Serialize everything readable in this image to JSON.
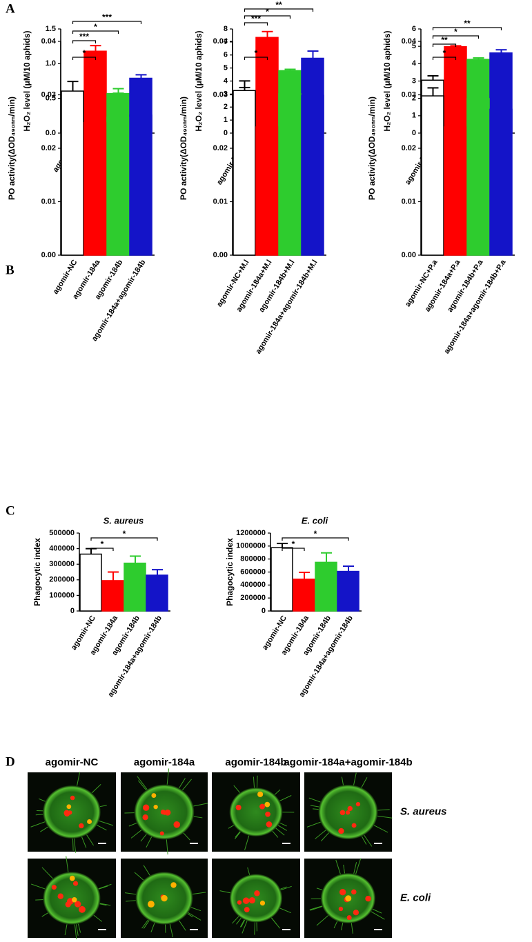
{
  "panels": [
    "A",
    "B",
    "C",
    "D"
  ],
  "chart_data": [
    {
      "type": "bar",
      "y_label": "H₂O₂ level (μM/10 aphids)",
      "categories": [
        "agomir-NC",
        "agomir-184a",
        "agomir-184b",
        "agomir-184a+agomir-184b"
      ],
      "colors": [
        "#ffffff",
        "#ff0000",
        "#2ecc2e",
        "#1414c8"
      ],
      "values": [
        0.27,
        1.18,
        0.57,
        0.79
      ],
      "errors": [
        0.08,
        0.08,
        0.07,
        0.05
      ],
      "annotations": [
        null,
        "***",
        "*",
        "***"
      ],
      "ylim": [
        0,
        1.5
      ],
      "yticks": [
        {
          "value": 0,
          "label": "0.0"
        },
        0.5,
        {
          "value": 1,
          "label": "1.0"
        },
        1.5
      ]
    },
    {
      "type": "bar",
      "y_label": "H₂O₂ level (μM/10 aphids)",
      "categories": [
        "agomir-NC+M.l",
        "agomir-184a+M.l",
        "agomir-184b+M.l",
        "agomir-184a+agomir-184b+M.l"
      ],
      "colors": [
        "#ffffff",
        "#ff0000",
        "#2ecc2e",
        "#1414c8"
      ],
      "values": [
        3.0,
        7.35,
        4.8,
        5.75
      ],
      "errors": [
        0.5,
        0.45,
        0.1,
        0.55
      ],
      "annotations": [
        null,
        "***",
        "*",
        "**"
      ],
      "ylim": [
        0,
        8
      ],
      "yticks": [
        0,
        1,
        2,
        3,
        4,
        5,
        6,
        7,
        8
      ]
    },
    {
      "type": "bar",
      "y_label": "H₂O₂ level (μM/10 aphids)",
      "categories": [
        "agomir-NC+P.a",
        "agomir-184a+P.a",
        "agomir-184b+P.a",
        "agomir-184a+agomir-184b+P.a"
      ],
      "colors": [
        "#ffffff",
        "#ff0000",
        "#2ecc2e",
        "#1414c8"
      ],
      "values": [
        3.05,
        4.98,
        4.25,
        4.62
      ],
      "errors": [
        0.25,
        0.05,
        0.08,
        0.18
      ],
      "annotations": [
        null,
        "**",
        "*",
        "**"
      ],
      "ylim": [
        0,
        6
      ],
      "yticks": [
        0,
        1,
        2,
        3,
        4,
        5,
        6
      ]
    },
    {
      "type": "bar",
      "y_label": "PO activity(ΔOD₄₉₀ₙₘ/min)",
      "categories": [
        "agomir-NC",
        "agomir-184a",
        "agomir-184b",
        "agomir-184a+agomir-184b"
      ],
      "colors": [
        "#ffffff",
        "#ff0000",
        "#2ecc2e",
        "#1414c8"
      ],
      "values": [
        0.0307,
        0.0248,
        0.0258,
        0.0262
      ],
      "errors": [
        0.0018,
        0.0012,
        0.0045,
        0.0048
      ],
      "annotations": [
        null,
        "*",
        null,
        null
      ],
      "ylim": [
        0,
        0.04
      ],
      "yticks": [
        {
          "value": 0,
          "label": "0.00"
        },
        0.01,
        0.02,
        0.03,
        0.04
      ]
    },
    {
      "type": "bar",
      "y_label": "PO activity(ΔOD₄₉₀ₙₘ/min)",
      "categories": [
        "agomir-NC+M.l",
        "agomir-184a+M.l",
        "agomir-184b+M.l",
        "agomir-184a+agomir-184b+M.l"
      ],
      "colors": [
        "#ffffff",
        "#ff0000",
        "#2ecc2e",
        "#1414c8"
      ],
      "values": [
        0.0308,
        0.024,
        0.0302,
        0.0299
      ],
      "errors": [
        0.0018,
        0.0027,
        0.003,
        0.0033
      ],
      "annotations": [
        null,
        "*",
        null,
        null
      ],
      "ylim": [
        0,
        0.04
      ],
      "yticks": [
        {
          "value": 0,
          "label": "0.00"
        },
        0.01,
        0.02,
        0.03,
        0.04
      ]
    },
    {
      "type": "bar",
      "y_label": "PO activity(ΔOD₄₉₀ₙₘ/min)",
      "categories": [
        "agomir-NC+P.a",
        "agomir-184a+P.a",
        "agomir-184b+P.a",
        "agomir-184a+agomir-184b+P.a"
      ],
      "colors": [
        "#ffffff",
        "#ff0000",
        "#2ecc2e",
        "#1414c8"
      ],
      "values": [
        0.0298,
        0.024,
        0.0293,
        0.0273
      ],
      "errors": [
        0.0015,
        0.0008,
        0.0007,
        0.001
      ],
      "annotations": [
        null,
        "*",
        null,
        null
      ],
      "ylim": [
        0,
        0.04
      ],
      "yticks": [
        {
          "value": 0,
          "label": "0.00"
        },
        0.01,
        0.02,
        0.03,
        0.04
      ]
    },
    {
      "type": "bar",
      "title": "S. aureus",
      "y_label": "Phagocytic index",
      "categories": [
        "agomir-NC",
        "agomir-184a",
        "agomir-184b",
        "agomir-184a+agomir-184b"
      ],
      "colors": [
        "#ffffff",
        "#ff0000",
        "#2ecc2e",
        "#1414c8"
      ],
      "values": [
        365000,
        195000,
        307000,
        230000
      ],
      "errors": [
        35000,
        55000,
        45000,
        35000
      ],
      "annotations": [
        null,
        "*",
        null,
        "*"
      ],
      "ylim": [
        0,
        500000
      ],
      "yticks": [
        0,
        100000,
        200000,
        300000,
        400000,
        500000
      ]
    },
    {
      "type": "bar",
      "title": "E. coli",
      "y_label": "Phagocytic index",
      "categories": [
        "agomir-NC",
        "agomir-184a",
        "agomir-184b",
        "agomir-184a+agomir-184b"
      ],
      "colors": [
        "#ffffff",
        "#ff0000",
        "#2ecc2e",
        "#1414c8"
      ],
      "values": [
        975000,
        490000,
        750000,
        610000
      ],
      "errors": [
        65000,
        105000,
        145000,
        80000
      ],
      "annotations": [
        null,
        "*",
        null,
        "*"
      ],
      "ylim": [
        0,
        1200000
      ],
      "yticks": [
        0,
        200000,
        400000,
        600000,
        800000,
        1000000,
        1200000
      ]
    }
  ],
  "micrographs": {
    "columns": [
      "agomir-NC",
      "agomir-184a",
      "agomir-184b",
      "agomir-184a+agomir-184b"
    ],
    "rows": [
      "S. aureus",
      "E. coli"
    ]
  }
}
